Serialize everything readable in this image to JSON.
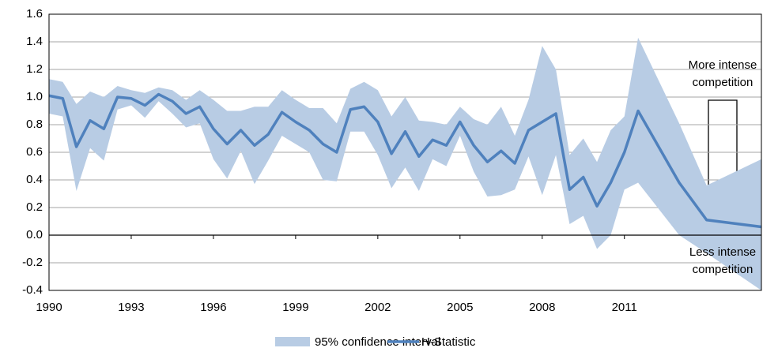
{
  "chart_data": {
    "type": "line",
    "x": [
      1990,
      1990.5,
      1991,
      1991.5,
      1992,
      1992.5,
      1993,
      1993.5,
      1994,
      1994.5,
      1995,
      1995.5,
      1996,
      1996.5,
      1997,
      1997.5,
      1998,
      1998.5,
      1999,
      1999.5,
      2000,
      2000.5,
      2001,
      2001.5,
      2002,
      2002.5,
      2003,
      2003.5,
      2004,
      2004.5,
      2005,
      2005.5,
      2006,
      2006.5,
      2007,
      2007.5,
      2008,
      2008.5,
      2009,
      2009.5,
      2010,
      2010.5,
      2011,
      2011.5,
      2013,
      2014,
      2016
    ],
    "series": [
      {
        "name": "95% confidence interval",
        "color": "#b8cce4",
        "upper": [
          1.13,
          1.11,
          0.95,
          1.04,
          1.0,
          1.08,
          1.05,
          1.03,
          1.07,
          1.05,
          0.98,
          1.05,
          0.98,
          0.9,
          0.9,
          0.93,
          0.93,
          1.05,
          0.98,
          0.92,
          0.92,
          0.81,
          1.06,
          1.11,
          1.05,
          0.86,
          1.0,
          0.83,
          0.82,
          0.8,
          0.93,
          0.84,
          0.8,
          0.93,
          0.72,
          0.98,
          1.37,
          1.2,
          0.58,
          0.7,
          0.53,
          0.76,
          0.86,
          1.43,
          0.81,
          0.36,
          0.55
        ],
        "lower": [
          0.88,
          0.86,
          0.32,
          0.63,
          0.54,
          0.91,
          0.94,
          0.85,
          0.97,
          0.88,
          0.78,
          0.81,
          0.55,
          0.41,
          0.61,
          0.37,
          0.54,
          0.72,
          0.66,
          0.6,
          0.4,
          0.39,
          0.75,
          0.75,
          0.58,
          0.34,
          0.49,
          0.32,
          0.55,
          0.5,
          0.72,
          0.46,
          0.28,
          0.29,
          0.33,
          0.57,
          0.29,
          0.58,
          0.08,
          0.14,
          -0.1,
          0.0,
          0.33,
          0.38,
          0.0,
          -0.13,
          -0.4
        ]
      },
      {
        "name": "H-Statistic",
        "color": "#4f81bd",
        "values": [
          1.01,
          0.99,
          0.64,
          0.83,
          0.77,
          1.0,
          0.99,
          0.94,
          1.02,
          0.97,
          0.88,
          0.93,
          0.77,
          0.66,
          0.76,
          0.65,
          0.73,
          0.89,
          0.82,
          0.76,
          0.66,
          0.6,
          0.91,
          0.93,
          0.82,
          0.59,
          0.75,
          0.57,
          0.69,
          0.65,
          0.82,
          0.65,
          0.53,
          0.61,
          0.52,
          0.76,
          0.82,
          0.88,
          0.33,
          0.42,
          0.21,
          0.38,
          0.6,
          0.9,
          0.38,
          0.11,
          0.06
        ]
      }
    ],
    "xlim": [
      1990,
      2016
    ],
    "xticks": [
      1990,
      1993,
      1996,
      1999,
      2002,
      2005,
      2008,
      2011
    ],
    "ylim": [
      -0.4,
      1.6
    ],
    "yticks": [
      1.6,
      1.4,
      1.2,
      {
        "value": 1,
        "label": "1.0"
      },
      0.8,
      0.6,
      0.4,
      0.2,
      {
        "value": 0,
        "label": "0.0"
      },
      -0.2,
      -0.4
    ],
    "grid": true,
    "annotations": {
      "top": [
        "More intense",
        "competition"
      ],
      "bottom": [
        "Less intense",
        "competition"
      ]
    }
  }
}
